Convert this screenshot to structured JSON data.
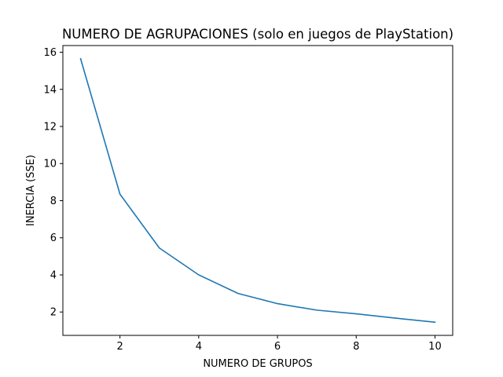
{
  "chart_data": {
    "type": "line",
    "title": "NUMERO DE AGRUPACIONES (solo en juegos de PlayStation)",
    "xlabel": "NUMERO DE GRUPOS",
    "ylabel": "INERCIA (SSE)",
    "x": [
      1,
      2,
      3,
      4,
      5,
      6,
      7,
      8,
      9,
      10
    ],
    "series": [
      {
        "values": [
          15.65,
          8.35,
          5.45,
          4.0,
          3.0,
          2.45,
          2.1,
          1.9,
          1.67,
          1.45
        ],
        "color": "#1f77b4"
      }
    ],
    "xlim": [
      0.55,
      10.45
    ],
    "ylim": [
      0.74,
      16.36
    ],
    "xticks": [
      2,
      4,
      6,
      8,
      10
    ],
    "yticks": [
      2,
      4,
      6,
      8,
      10,
      12,
      14,
      16
    ],
    "grid": false,
    "legend": "none"
  }
}
